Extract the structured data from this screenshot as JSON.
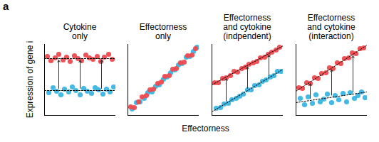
{
  "panel_label": "a",
  "y_label": "Expression of gene i",
  "x_label": "Effectorness",
  "chart_data": [
    {
      "type": "scatter",
      "title": "Cytokine only",
      "xlim": [
        0,
        10
      ],
      "ylim": [
        0,
        10
      ],
      "tick_labels": false,
      "grid": false,
      "series": [
        {
          "color": "#39b5e3",
          "marker": "circle",
          "x": [
            0.6,
            1.2,
            1.7,
            2.3,
            2.8,
            3.4,
            3.9,
            4.4,
            5.0,
            5.5,
            6.0,
            6.6,
            7.1,
            7.6,
            8.2,
            8.7,
            9.2,
            9.7
          ],
          "values": [
            3.2,
            3.9,
            3.4,
            2.9,
            3.7,
            3.3,
            4.0,
            3.5,
            2.9,
            3.8,
            3.4,
            3.1,
            3.9,
            3.6,
            3.0,
            3.7,
            3.3,
            4.0
          ]
        },
        {
          "color": "#ee4a4f",
          "marker": "circle",
          "x": [
            0.4,
            0.9,
            1.5,
            2.0,
            2.6,
            3.1,
            3.6,
            4.2,
            4.7,
            5.2,
            5.8,
            6.3,
            6.8,
            7.4,
            7.9,
            8.4,
            9.0,
            9.5
          ],
          "values": [
            8.3,
            7.7,
            8.1,
            8.6,
            7.8,
            8.2,
            7.6,
            8.4,
            8.0,
            7.7,
            8.5,
            8.1,
            7.9,
            8.3,
            7.6,
            8.2,
            8.6,
            7.9
          ]
        },
        {
          "type": "line",
          "line_style": "dotted",
          "color": "#000000",
          "x": [
            0,
            10
          ],
          "values": [
            3.5,
            3.5
          ]
        },
        {
          "type": "line",
          "line_style": "dotted",
          "color": "#000000",
          "x": [
            0,
            10
          ],
          "values": [
            8,
            8
          ]
        }
      ]
    },
    {
      "type": "scatter",
      "title": "Effectorness only",
      "xlim": [
        0,
        10
      ],
      "ylim": [
        0,
        10
      ],
      "tick_labels": false,
      "grid": false,
      "series": [
        {
          "color": "#39b5e3",
          "marker": "circle",
          "x": [
            0.6,
            1.2,
            1.7,
            2.3,
            2.8,
            3.4,
            3.9,
            4.4,
            5.0,
            5.5,
            6.0,
            6.6,
            7.1,
            7.6,
            8.2,
            8.7,
            9.2,
            9.7
          ],
          "values": [
            0.9,
            1.8,
            1.9,
            2.4,
            3.2,
            3.3,
            4.1,
            4.3,
            5.1,
            5.4,
            6.0,
            6.4,
            7.1,
            7.3,
            8.2,
            8.3,
            9.0,
            9.6
          ]
        },
        {
          "color": "#ee4a4f",
          "marker": "circle",
          "x": [
            0.4,
            0.9,
            1.5,
            2.0,
            2.6,
            3.1,
            3.6,
            4.2,
            4.7,
            5.2,
            5.8,
            6.3,
            6.8,
            7.4,
            7.9,
            8.4,
            9.0,
            9.5
          ],
          "values": [
            1.2,
            1.1,
            1.9,
            2.6,
            2.8,
            3.6,
            3.7,
            4.5,
            4.7,
            5.5,
            5.6,
            6.5,
            6.6,
            7.4,
            7.5,
            8.4,
            8.5,
            9.4
          ]
        }
      ]
    },
    {
      "type": "scatter",
      "title": "Effectorness and cytokine (indpendent)",
      "xlim": [
        0,
        10
      ],
      "ylim": [
        0,
        10
      ],
      "tick_labels": false,
      "grid": false,
      "series": [
        {
          "color": "#39b5e3",
          "marker": "circle",
          "x": [
            0.6,
            1.2,
            1.7,
            2.3,
            2.8,
            3.4,
            3.9,
            4.4,
            5.0,
            5.5,
            6.0,
            6.6,
            7.1,
            7.6,
            8.2,
            8.7,
            9.2,
            9.7
          ],
          "values": [
            1.0,
            1.1,
            1.6,
            1.7,
            2.2,
            2.4,
            2.7,
            3.0,
            3.6,
            3.6,
            4.2,
            4.3,
            4.8,
            5.0,
            5.4,
            5.6,
            6.2,
            6.2
          ]
        },
        {
          "color": "#ee4a4f",
          "marker": "circle",
          "x": [
            0.4,
            0.9,
            1.5,
            2.0,
            2.6,
            3.1,
            3.6,
            4.2,
            4.7,
            5.2,
            5.8,
            6.3,
            6.8,
            7.4,
            7.9,
            8.4,
            9.0,
            9.5
          ],
          "values": [
            4.6,
            4.6,
            5.2,
            5.3,
            5.6,
            6.2,
            6.1,
            6.6,
            6.8,
            7.2,
            7.4,
            7.6,
            8.1,
            8.2,
            8.6,
            8.9,
            9.2,
            9.6
          ]
        },
        {
          "type": "line",
          "line_style": "dotted",
          "color": "#000000",
          "x": [
            0,
            10
          ],
          "values": [
            0.5,
            6.5
          ]
        },
        {
          "type": "line",
          "line_style": "dotted",
          "color": "#000000",
          "x": [
            0,
            10
          ],
          "values": [
            4.3,
            9.8
          ]
        }
      ]
    },
    {
      "type": "scatter",
      "title": "Effectorness and cytokine (interaction)",
      "xlim": [
        0,
        10
      ],
      "ylim": [
        0,
        10
      ],
      "tick_labels": false,
      "grid": false,
      "series": [
        {
          "color": "#39b5e3",
          "marker": "circle",
          "x": [
            0.6,
            1.2,
            1.7,
            2.3,
            2.8,
            3.4,
            3.9,
            4.4,
            5.0,
            5.5,
            6.0,
            6.6,
            7.1,
            7.6,
            8.2,
            8.7,
            9.2,
            9.7
          ],
          "values": [
            2.4,
            1.5,
            2.6,
            1.7,
            2.9,
            1.9,
            2.3,
            3.0,
            1.8,
            2.8,
            2.2,
            3.1,
            1.9,
            3.2,
            2.4,
            2.8,
            3.3,
            2.5
          ]
        },
        {
          "color": "#ee4a4f",
          "marker": "circle",
          "x": [
            0.4,
            0.9,
            1.5,
            2.0,
            2.6,
            3.1,
            3.6,
            4.2,
            4.7,
            5.2,
            5.8,
            6.3,
            6.8,
            7.4,
            7.9,
            8.4,
            9.0,
            9.5
          ],
          "values": [
            3.9,
            3.8,
            4.6,
            4.5,
            5.3,
            5.2,
            5.9,
            6.0,
            6.7,
            6.6,
            7.4,
            7.3,
            8.0,
            8.1,
            8.8,
            8.7,
            9.4,
            9.5
          ]
        },
        {
          "type": "line",
          "line_style": "dotted",
          "color": "#000000",
          "x": [
            0,
            10
          ],
          "values": [
            1.8,
            3.3
          ]
        },
        {
          "type": "line",
          "line_style": "dotted",
          "color": "#000000",
          "x": [
            0,
            10
          ],
          "values": [
            3.4,
            9.9
          ]
        }
      ]
    }
  ]
}
